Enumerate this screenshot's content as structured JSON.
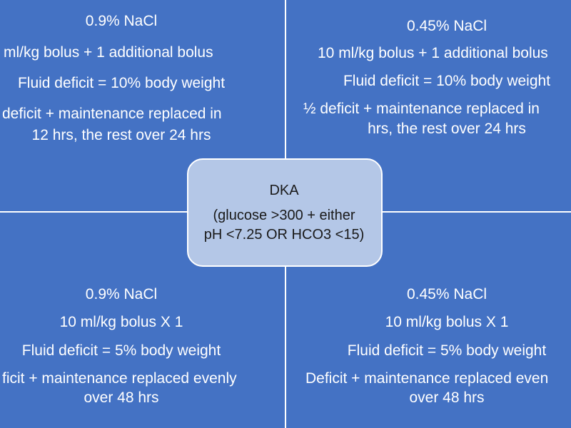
{
  "quadrants": [
    {
      "lines": [
        "0.9% NaCl",
        "ml/kg bolus + 1 additional bolus",
        "Fluid deficit = 10% body weight",
        "deficit + maintenance replaced in",
        "12 hrs, the rest over 24 hrs"
      ]
    },
    {
      "lines": [
        "0.45% NaCl",
        "10 ml/kg bolus + 1 additional bolus",
        "Fluid deficit = 10% body weight",
        "½ deficit + maintenance replaced in",
        "hrs, the rest over 24 hrs"
      ]
    },
    {
      "lines": [
        "0.9% NaCl",
        "10 ml/kg bolus X 1",
        "Fluid deficit = 5% body weight",
        "ficit + maintenance replaced evenly",
        "over 48 hrs"
      ]
    },
    {
      "lines": [
        "0.45% NaCl",
        "10 ml/kg bolus X 1",
        "Fluid deficit = 5% body weight",
        "Deficit + maintenance replaced even",
        "over 48 hrs"
      ]
    }
  ],
  "center": {
    "title": "DKA",
    "lines": [
      "(glucose >300 + either",
      "pH <7.25 OR HCO3 <15)"
    ]
  }
}
